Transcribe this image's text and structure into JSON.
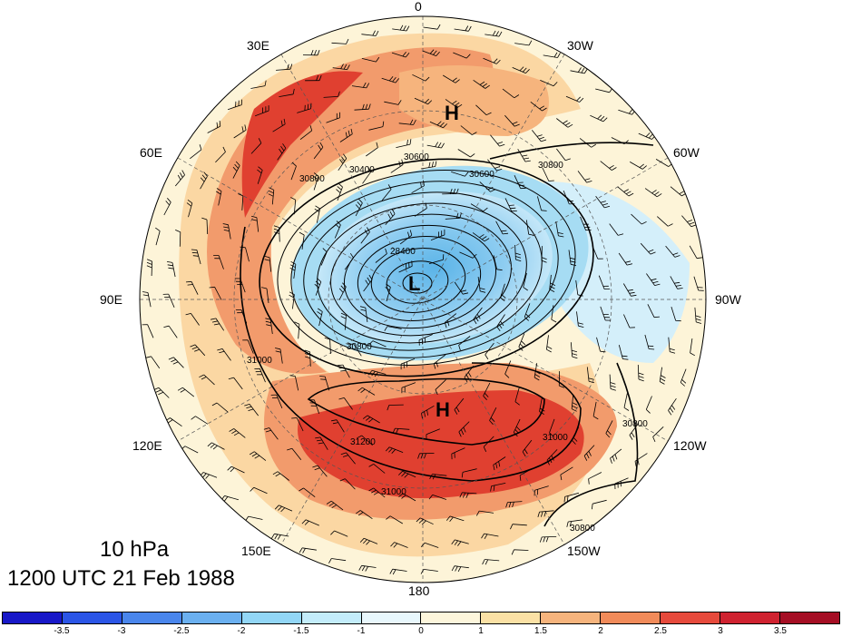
{
  "map": {
    "longitude_labels": [
      {
        "text": "0",
        "lon": 0
      },
      {
        "text": "30W",
        "lon": -30
      },
      {
        "text": "60W",
        "lon": -60
      },
      {
        "text": "90W",
        "lon": -90
      },
      {
        "text": "120W",
        "lon": -120
      },
      {
        "text": "150W",
        "lon": -150
      },
      {
        "text": "180",
        "lon": 180
      },
      {
        "text": "150E",
        "lon": 150
      },
      {
        "text": "120E",
        "lon": 120
      },
      {
        "text": "90E",
        "lon": 90
      },
      {
        "text": "60E",
        "lon": 60
      },
      {
        "text": "30E",
        "lon": 30
      }
    ],
    "pressure_centers": [
      {
        "type": "L"
      },
      {
        "type": "H"
      },
      {
        "type": "H"
      }
    ],
    "contour_labels": [
      "30400",
      "30600",
      "30600",
      "30800",
      "30800",
      "31000",
      "31200",
      "31000",
      "31000",
      "28400",
      "30800",
      "30800",
      "30800"
    ],
    "colors": {
      "ocean_background": "#fdf4d8",
      "strong_positive": "#e04030",
      "positive": "#f29b6c",
      "weak_positive": "#fbd7a3",
      "strong_negative": "#5bb4e8",
      "negative": "#a6dcf3",
      "weak_negative": "#d4effa"
    }
  },
  "caption": {
    "level": "10 hPa",
    "time": "1200 UTC 21 Feb 1988"
  },
  "colorbar": {
    "colors": [
      "#1818c8",
      "#2b55e6",
      "#4a86ec",
      "#6bb0f0",
      "#92d6f6",
      "#c3ecfa",
      "#e8f7fc",
      "#fdf6dc",
      "#fbe1a5",
      "#f6b47d",
      "#f18b5a",
      "#e64a3c",
      "#cf2230",
      "#a50e24"
    ],
    "tick_labels": [
      "-3.5",
      "-3",
      "-2.5",
      "-2",
      "-1.5",
      "-1",
      "0",
      "1",
      "1.5",
      "2",
      "2.5",
      "3",
      "3.5"
    ]
  }
}
